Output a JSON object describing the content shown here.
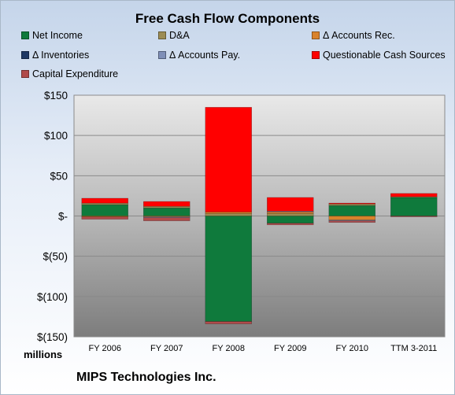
{
  "chart_data": {
    "type": "bar",
    "stacked": true,
    "title": "Free Cash Flow Components",
    "categories": [
      "FY 2006",
      "FY 2007",
      "FY 2008",
      "FY 2009",
      "FY 2010",
      "TTM 3-2011"
    ],
    "ylim": [
      -150,
      150
    ],
    "yticks": [
      150,
      100,
      50,
      0,
      -50,
      -100,
      -150
    ],
    "ytick_labels": [
      "$150",
      "$100",
      "$50",
      "$-",
      "$(50)",
      "$(100)",
      "$(150)"
    ],
    "units_label": "millions",
    "grid": true,
    "legend_position": "top",
    "series": [
      {
        "name": "Net Income",
        "color": "#0f7a3c",
        "values": [
          14,
          10,
          -131,
          -9,
          13,
          23
        ]
      },
      {
        "name": "D&A",
        "color": "#9c8c54",
        "values": [
          2,
          2,
          3,
          3,
          2,
          1
        ]
      },
      {
        "name": "Δ Accounts Rec.",
        "color": "#d9822b",
        "values": [
          -1,
          -1,
          2,
          2,
          -5,
          0
        ]
      },
      {
        "name": "Δ Inventories",
        "color": "#1f3864",
        "values": [
          0,
          0,
          0,
          0,
          0,
          0
        ]
      },
      {
        "name": "Δ Accounts Pay.",
        "color": "#7f8fb8",
        "values": [
          0,
          -1,
          0,
          1,
          -1,
          0
        ]
      },
      {
        "name": "Questionable Cash Sources",
        "color": "#ff0000",
        "values": [
          6,
          6,
          130,
          17,
          1,
          4
        ]
      },
      {
        "name": "Capital Expenditure",
        "color": "#b04a4a",
        "values": [
          -3,
          -4,
          -3,
          -2,
          -2,
          -1
        ]
      }
    ]
  },
  "footer": {
    "company": "MIPS Technologies Inc."
  }
}
